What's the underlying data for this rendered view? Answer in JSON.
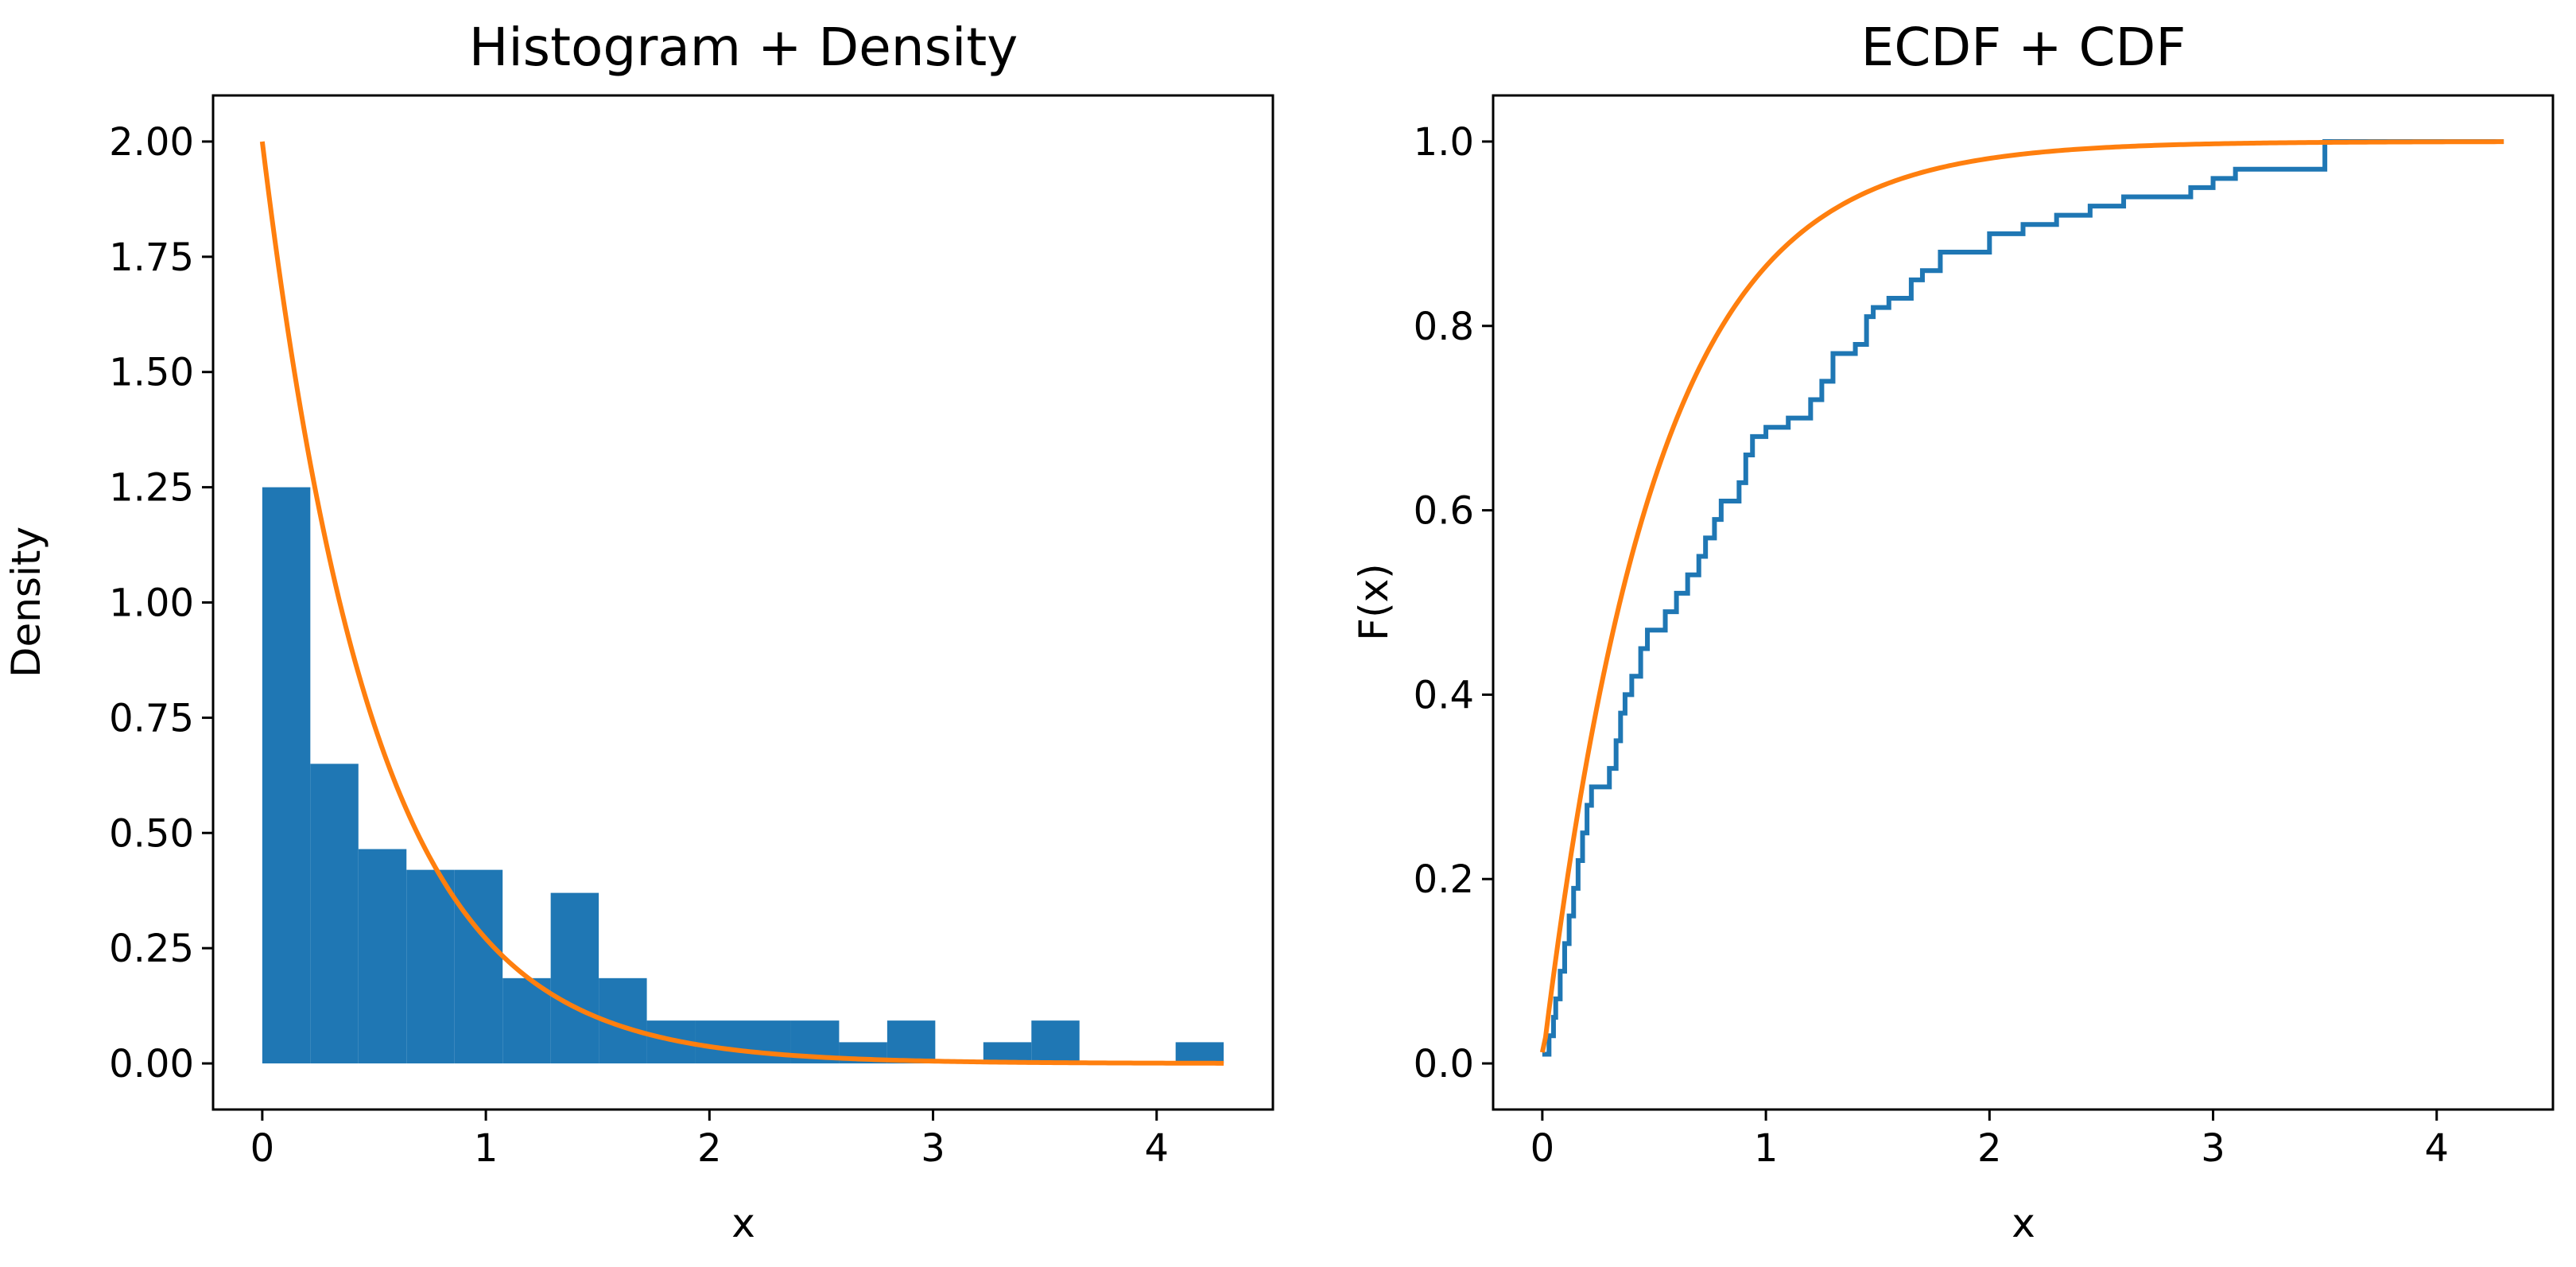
{
  "figure": {
    "panels": 2
  },
  "colors": {
    "histogram": "#1f77b4",
    "ecdf": "#1f77b4",
    "density": "#ff7f0e",
    "cdf": "#ff7f0e"
  },
  "chart_data": [
    {
      "type": "bar",
      "subtype": "histogram-with-density",
      "title": "Histogram + Density",
      "xlabel": "x",
      "ylabel": "Density",
      "xlim": [
        -0.22,
        4.52
      ],
      "ylim": [
        -0.1,
        2.1
      ],
      "xticks": [
        0,
        1,
        2,
        3,
        4
      ],
      "xtick_labels": [
        "0",
        "1",
        "2",
        "3",
        "4"
      ],
      "yticks": [
        0,
        0.25,
        0.5,
        0.75,
        1.0,
        1.25,
        1.5,
        1.75,
        2.0
      ],
      "ytick_labels": [
        "0.00",
        "0.25",
        "0.50",
        "0.75",
        "1.00",
        "1.25",
        "1.50",
        "1.75",
        "2.00"
      ],
      "grid": false,
      "bin_edges": [
        0.0,
        0.215,
        0.43,
        0.645,
        0.86,
        1.075,
        1.29,
        1.505,
        1.72,
        1.935,
        2.15,
        2.365,
        2.58,
        2.795,
        3.01,
        3.225,
        3.44,
        3.655,
        3.87,
        4.085,
        4.3
      ],
      "values": [
        1.25,
        0.65,
        0.465,
        0.42,
        0.42,
        0.185,
        0.37,
        0.185,
        0.093,
        0.093,
        0.093,
        0.093,
        0.046,
        0.093,
        0.0,
        0.046,
        0.093,
        0.0,
        0.0,
        0.046
      ],
      "density": {
        "function": "exponential_pdf",
        "rate": 2.0,
        "x_range": [
          0.0,
          4.3
        ]
      }
    },
    {
      "type": "line",
      "subtype": "ecdf-with-cdf",
      "title": "ECDF + CDF",
      "xlabel": "x",
      "ylabel": "F(x)",
      "xlim": [
        -0.22,
        4.52
      ],
      "ylim": [
        -0.05,
        1.05
      ],
      "xticks": [
        0,
        1,
        2,
        3,
        4
      ],
      "xtick_labels": [
        "0",
        "1",
        "2",
        "3",
        "4"
      ],
      "yticks": [
        0.0,
        0.2,
        0.4,
        0.6,
        0.8,
        1.0
      ],
      "ytick_labels": [
        "0.0",
        "0.2",
        "0.4",
        "0.6",
        "0.8",
        "1.0"
      ],
      "grid": false,
      "ecdf_steps": [
        [
          0.0,
          0.01
        ],
        [
          0.03,
          0.03
        ],
        [
          0.05,
          0.05
        ],
        [
          0.06,
          0.07
        ],
        [
          0.08,
          0.1
        ],
        [
          0.1,
          0.13
        ],
        [
          0.12,
          0.16
        ],
        [
          0.14,
          0.19
        ],
        [
          0.16,
          0.22
        ],
        [
          0.18,
          0.25
        ],
        [
          0.2,
          0.28
        ],
        [
          0.22,
          0.3
        ],
        [
          0.3,
          0.32
        ],
        [
          0.33,
          0.35
        ],
        [
          0.35,
          0.38
        ],
        [
          0.37,
          0.4
        ],
        [
          0.4,
          0.42
        ],
        [
          0.44,
          0.45
        ],
        [
          0.47,
          0.47
        ],
        [
          0.55,
          0.49
        ],
        [
          0.6,
          0.51
        ],
        [
          0.65,
          0.53
        ],
        [
          0.7,
          0.55
        ],
        [
          0.73,
          0.57
        ],
        [
          0.77,
          0.59
        ],
        [
          0.8,
          0.61
        ],
        [
          0.88,
          0.63
        ],
        [
          0.91,
          0.66
        ],
        [
          0.94,
          0.68
        ],
        [
          1.0,
          0.69
        ],
        [
          1.1,
          0.7
        ],
        [
          1.2,
          0.72
        ],
        [
          1.25,
          0.74
        ],
        [
          1.3,
          0.77
        ],
        [
          1.4,
          0.78
        ],
        [
          1.45,
          0.81
        ],
        [
          1.48,
          0.82
        ],
        [
          1.55,
          0.83
        ],
        [
          1.65,
          0.85
        ],
        [
          1.7,
          0.86
        ],
        [
          1.78,
          0.88
        ],
        [
          2.0,
          0.9
        ],
        [
          2.15,
          0.91
        ],
        [
          2.3,
          0.92
        ],
        [
          2.45,
          0.93
        ],
        [
          2.6,
          0.94
        ],
        [
          2.9,
          0.95
        ],
        [
          3.0,
          0.96
        ],
        [
          3.1,
          0.97
        ],
        [
          3.5,
          0.99
        ],
        [
          3.5,
          1.0
        ],
        [
          4.3,
          1.0
        ]
      ],
      "cdf": {
        "function": "exponential_cdf",
        "rate": 2.0,
        "x_range": [
          0.0,
          4.3
        ]
      }
    }
  ]
}
